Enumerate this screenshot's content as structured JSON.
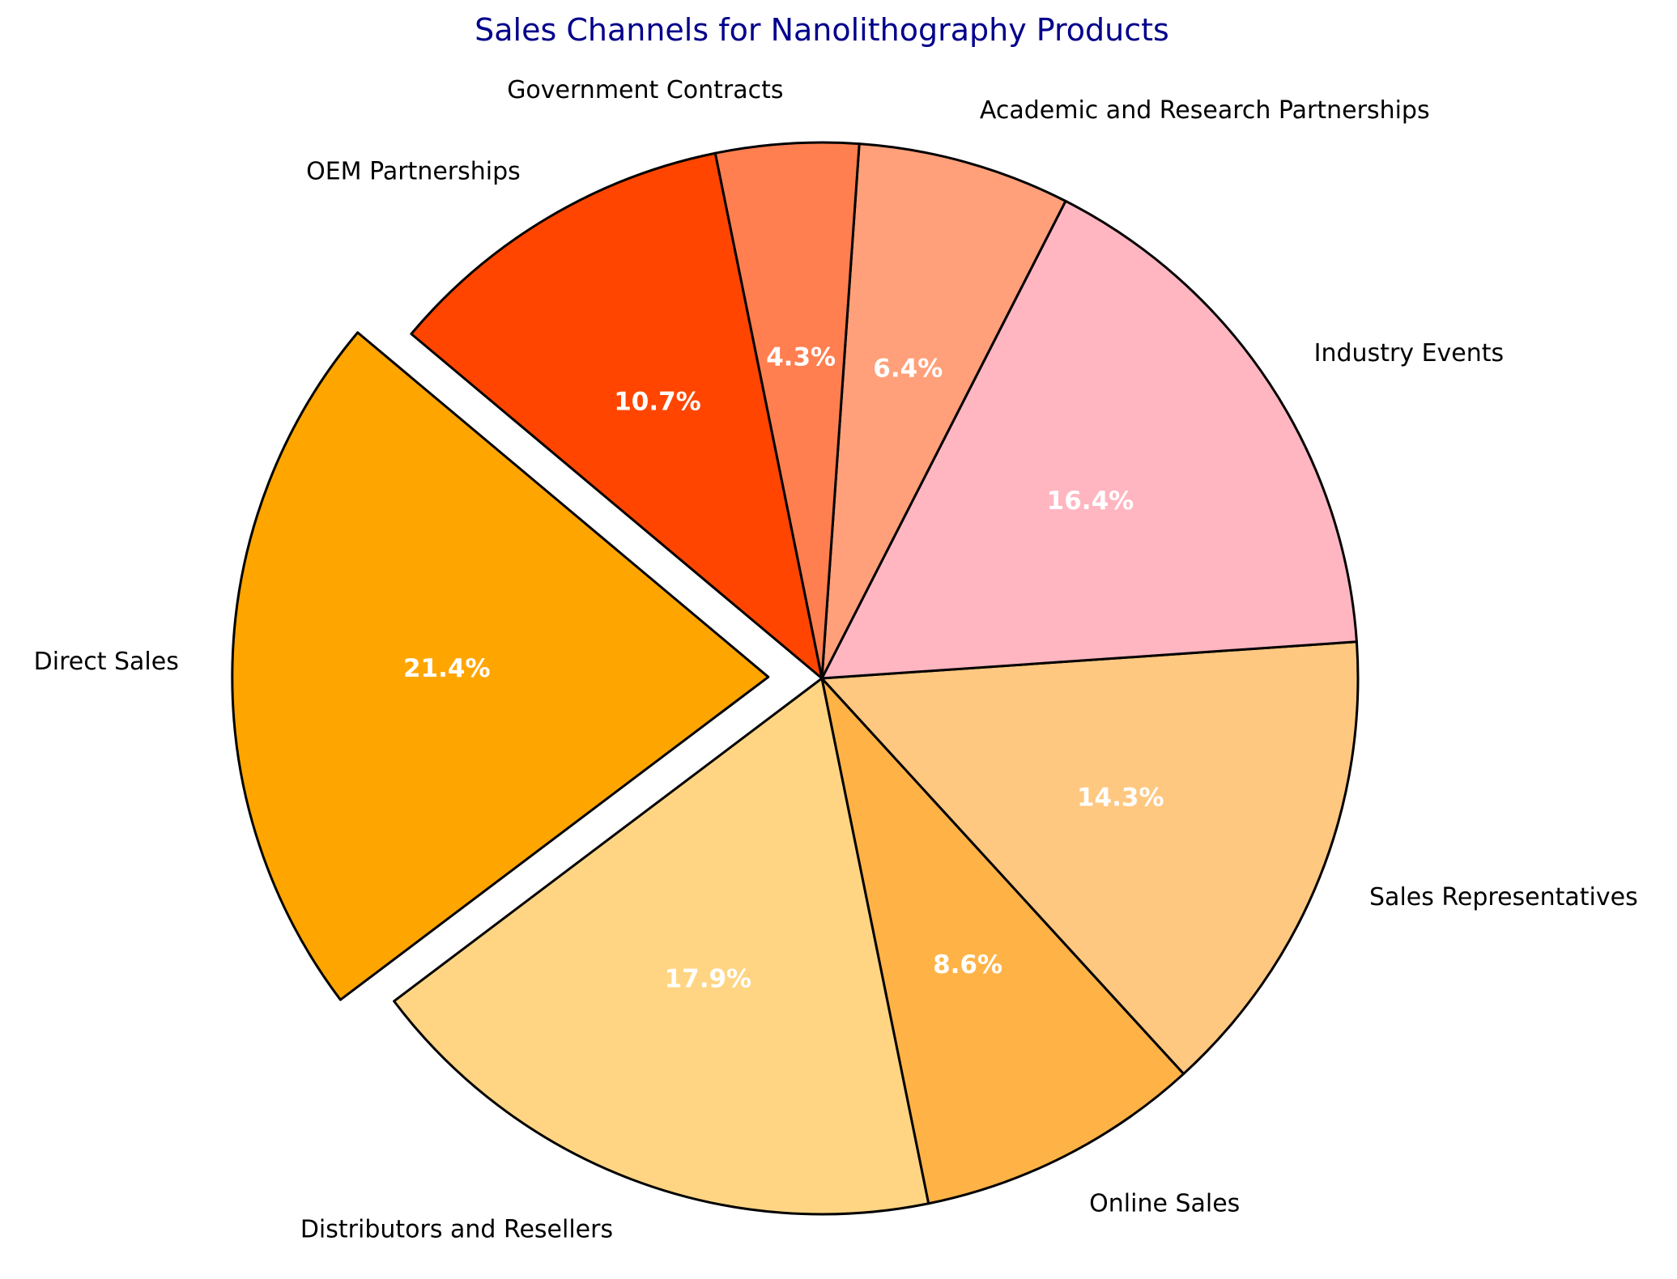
{
  "chart_data": {
    "type": "pie",
    "title": "Sales Channels for Nanolithography Products",
    "title_color": "#00008b",
    "start_angle_deg": 140,
    "direction": "counterclockwise",
    "slices": [
      {
        "label": "Direct Sales",
        "value": 21.4,
        "pct_label": "21.4%",
        "color": "#FFA500",
        "exploded": true
      },
      {
        "label": "Distributors and Resellers",
        "value": 17.9,
        "pct_label": "17.9%",
        "color": "#FFD584",
        "exploded": false
      },
      {
        "label": "Online Sales",
        "value": 8.6,
        "pct_label": "8.6%",
        "color": "#FFB347",
        "exploded": false
      },
      {
        "label": "Sales Representatives",
        "value": 14.3,
        "pct_label": "14.3%",
        "color": "#FFC880",
        "exploded": false
      },
      {
        "label": "Industry Events",
        "value": 16.4,
        "pct_label": "16.4%",
        "color": "#FFB6C1",
        "exploded": false
      },
      {
        "label": "Academic and Research Partnerships",
        "value": 6.4,
        "pct_label": "6.4%",
        "color": "#FFA07A",
        "exploded": false
      },
      {
        "label": "Government Contracts",
        "value": 4.3,
        "pct_label": "4.3%",
        "color": "#FF7F50",
        "exploded": false
      },
      {
        "label": "OEM Partnerships",
        "value": 10.7,
        "pct_label": "10.7%",
        "color": "#FF4500",
        "exploded": false
      }
    ]
  }
}
